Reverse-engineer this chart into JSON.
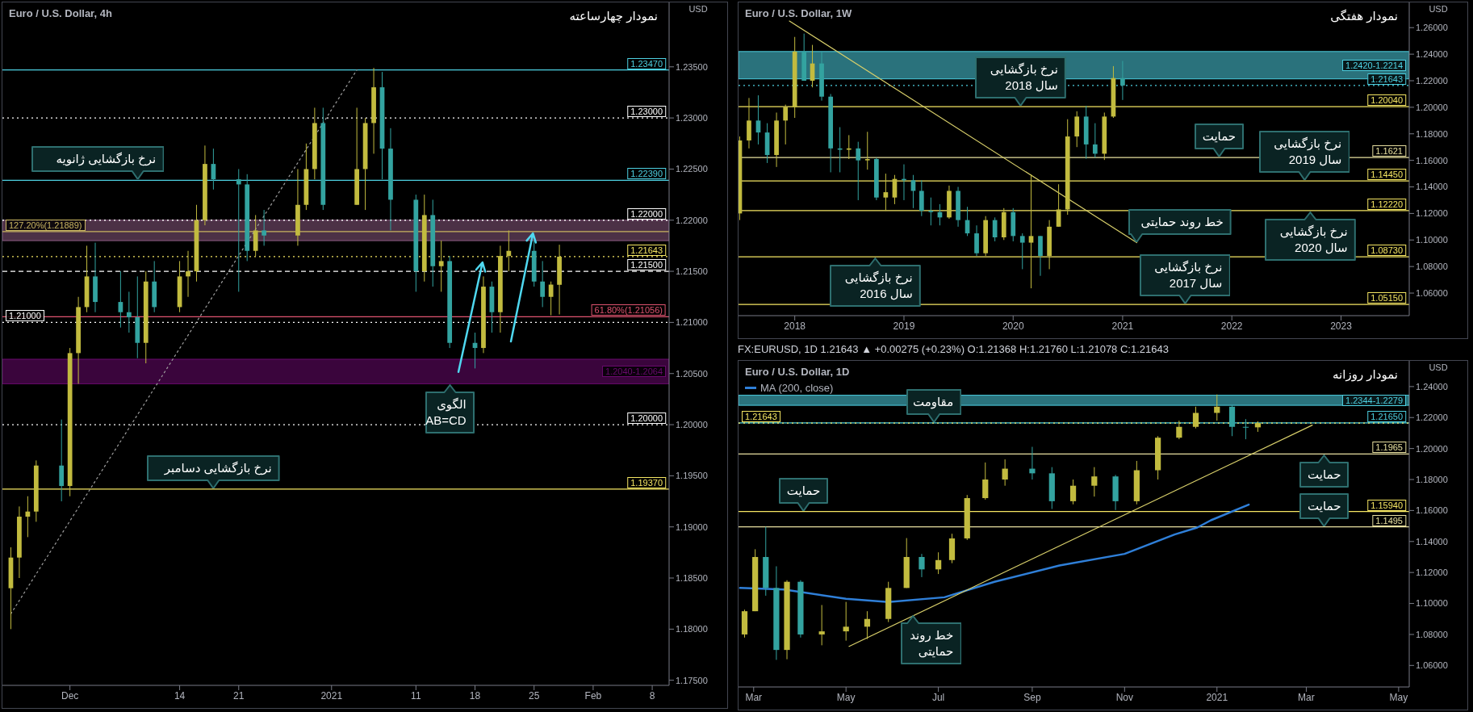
{
  "chart_data": [
    {
      "type": "candlestick",
      "title": "Euro / U.S. Dollar, 4h",
      "ylabel": "USD",
      "x": [
        "2020-11-24",
        "2020-11-25",
        "2020-11-26",
        "2020-11-27",
        "2020-11-30",
        "2020-12-01",
        "2020-12-02",
        "2020-12-03",
        "2020-12-04",
        "2020-12-07",
        "2020-12-08",
        "2020-12-09",
        "2020-12-10",
        "2020-12-11",
        "2020-12-14",
        "2020-12-15",
        "2020-12-16",
        "2020-12-17",
        "2020-12-18",
        "2020-12-21",
        "2020-12-22",
        "2020-12-23",
        "2020-12-24",
        "2020-12-28",
        "2020-12-29",
        "2020-12-30",
        "2020-12-31",
        "2021-01-04",
        "2021-01-05",
        "2021-01-06",
        "2021-01-07",
        "2021-01-08",
        "2021-01-11",
        "2021-01-12",
        "2021-01-13",
        "2021-01-14",
        "2021-01-15",
        "2021-01-18",
        "2021-01-19",
        "2021-01-20",
        "2021-01-21",
        "2021-01-22",
        "2021-01-25",
        "2021-01-26",
        "2021-01-27",
        "2021-01-28"
      ],
      "ohlc": [
        [
          1.184,
          1.188,
          1.18,
          1.187
        ],
        [
          1.187,
          1.192,
          1.185,
          1.191
        ],
        [
          1.191,
          1.193,
          1.189,
          1.1915
        ],
        [
          1.1915,
          1.1965,
          1.1905,
          1.196
        ],
        [
          1.196,
          1.2005,
          1.1925,
          1.194
        ],
        [
          1.194,
          1.2075,
          1.193,
          1.207
        ],
        [
          1.207,
          1.2125,
          1.204,
          1.2115
        ],
        [
          1.2115,
          1.2175,
          1.211,
          1.2145
        ],
        [
          1.2145,
          1.2178,
          1.211,
          1.212
        ],
        [
          1.212,
          1.215,
          1.2095,
          1.211
        ],
        [
          1.211,
          1.213,
          1.209,
          1.2105
        ],
        [
          1.2105,
          1.2145,
          1.2065,
          1.208
        ],
        [
          1.208,
          1.215,
          1.206,
          1.214
        ],
        [
          1.214,
          1.216,
          1.211,
          1.2115
        ],
        [
          1.2115,
          1.216,
          1.211,
          1.2145
        ],
        [
          1.2145,
          1.217,
          1.2125,
          1.215
        ],
        [
          1.215,
          1.2215,
          1.214,
          1.22
        ],
        [
          1.22,
          1.2273,
          1.2195,
          1.2255
        ],
        [
          1.2255,
          1.227,
          1.223,
          1.224
        ],
        [
          1.224,
          1.225,
          1.213,
          1.2235
        ],
        [
          1.2235,
          1.2245,
          1.216,
          1.217
        ],
        [
          1.217,
          1.2205,
          1.2165,
          1.219
        ],
        [
          1.219,
          1.221,
          1.2175,
          1.2185
        ],
        [
          1.2185,
          1.225,
          1.2175,
          1.2215
        ],
        [
          1.2215,
          1.2275,
          1.221,
          1.225
        ],
        [
          1.225,
          1.231,
          1.224,
          1.2295
        ],
        [
          1.2295,
          1.231,
          1.221,
          1.2215
        ],
        [
          1.2215,
          1.231,
          1.2215,
          1.225
        ],
        [
          1.225,
          1.23,
          1.221,
          1.2295
        ],
        [
          1.2295,
          1.2349,
          1.2265,
          1.233
        ],
        [
          1.233,
          1.2345,
          1.224,
          1.227
        ],
        [
          1.227,
          1.229,
          1.219,
          1.222
        ],
        [
          1.222,
          1.2225,
          1.213,
          1.215
        ],
        [
          1.215,
          1.2225,
          1.214,
          1.2205
        ],
        [
          1.2205,
          1.222,
          1.2135,
          1.2155
        ],
        [
          1.2155,
          1.218,
          1.213,
          1.216
        ],
        [
          1.216,
          1.2165,
          1.2075,
          1.208
        ],
        [
          1.208,
          1.209,
          1.2055,
          1.2075
        ],
        [
          1.2075,
          1.2145,
          1.207,
          1.2135
        ],
        [
          1.2135,
          1.214,
          1.209,
          1.211
        ],
        [
          1.211,
          1.2175,
          1.209,
          1.2165
        ],
        [
          1.2165,
          1.219,
          1.215,
          1.217
        ],
        [
          1.217,
          1.218,
          1.2135,
          1.214
        ],
        [
          1.214,
          1.216,
          1.2115,
          1.2125
        ],
        [
          1.2125,
          1.214,
          1.2107,
          1.2137
        ],
        [
          1.21368,
          1.2176,
          1.21078,
          1.21643
        ]
      ],
      "series": [
        {
          "type": "line",
          "color": "#9e9e9e",
          "line_style": "dotted",
          "x": [
            "2020-11-24",
            "2021-01-04"
          ],
          "values": [
            1.1815,
            1.2347
          ]
        }
      ],
      "xlim": [
        "2020-11-23",
        "2021-02-10"
      ],
      "xticks": [
        {
          "value": "2020-12-01",
          "label": "Dec"
        },
        {
          "value": "2020-12-14",
          "label": "14"
        },
        {
          "value": "2020-12-21",
          "label": "21"
        },
        {
          "value": "2021-01-01",
          "label": "2021"
        },
        {
          "value": "2021-01-11",
          "label": "11"
        },
        {
          "value": "2021-01-18",
          "label": "18"
        },
        {
          "value": "2021-01-25",
          "label": "25"
        },
        {
          "value": "2021-02-01",
          "label": "Feb"
        },
        {
          "value": "2021-02-08",
          "label": "8"
        }
      ],
      "ylim": [
        1.1745,
        1.2413
      ],
      "yticks": [
        {
          "value": 1.175,
          "label": "1.17500"
        },
        {
          "value": 1.18,
          "label": "1.18000"
        },
        {
          "value": 1.185,
          "label": "1.18500"
        },
        {
          "value": 1.19,
          "label": "1.19000"
        },
        {
          "value": 1.195,
          "label": "1.19500"
        },
        {
          "value": 1.2,
          "label": "1.20000"
        },
        {
          "value": 1.205,
          "label": "1.20500"
        },
        {
          "value": 1.21,
          "label": "1.21000"
        },
        {
          "value": 1.215,
          "label": "1.21500"
        },
        {
          "value": 1.22,
          "label": "1.22000"
        },
        {
          "value": 1.225,
          "label": "1.22500"
        },
        {
          "value": 1.23,
          "label": "1.23000"
        },
        {
          "value": 1.235,
          "label": "1.23500"
        }
      ],
      "ref_lines": [
        {
          "axis": "y",
          "value": 1.2347,
          "label": "1.23470",
          "color": "#4dd0e1",
          "line_style": "solid"
        },
        {
          "axis": "y",
          "value": 1.23,
          "label": "1.23000",
          "color": "#ffffff",
          "line_style": "dotted"
        },
        {
          "axis": "y",
          "value": 1.2239,
          "label": "1.22390",
          "color": "#4dd0e1",
          "line_style": "solid"
        },
        {
          "axis": "y",
          "value": 1.22,
          "label": "1.22000",
          "color": "#ffffff",
          "line_style": "dotted"
        },
        {
          "axis": "y",
          "value": 1.21889,
          "label": "127.20%(1.21889)",
          "color": "#c8b560",
          "line_style": "solid"
        },
        {
          "axis": "y",
          "value": 1.21643,
          "label": "1.21643",
          "color": "#f5e663",
          "line_style": "dotted"
        },
        {
          "axis": "y",
          "value": 1.215,
          "label": "1.21500",
          "color": "#ffffff",
          "line_style": "dashed"
        },
        {
          "axis": "y",
          "value": 1.21056,
          "label": "61.80%(1.21056)",
          "color": "#e05470",
          "line_style": "solid"
        },
        {
          "axis": "y",
          "value": 1.21,
          "label": "1.21000",
          "color": "#ffffff",
          "line_style": "dotted"
        },
        {
          "axis": "y",
          "value": 1.2,
          "label": "1.20000",
          "color": "#ffffff",
          "line_style": "dotted"
        },
        {
          "axis": "y",
          "value": 1.1937,
          "label": "1.19370",
          "color": "#f5e663",
          "line_style": "solid"
        }
      ],
      "bands": [
        {
          "axis": "y",
          "from": 1.204,
          "to": 1.2064,
          "label": "1.2040-1.2064",
          "color": "#6a0a6e"
        },
        {
          "axis": "y",
          "from": 1.218,
          "to": 1.22,
          "color": "#8a5a80"
        }
      ],
      "annotations": [
        "نمودار چهارساعته",
        {
          "text": "نرخ بازگشایی ژانویه",
          "x": "2020-12-09",
          "y": 1.2239
        },
        {
          "text": "نرخ بازگشایی دسامبر",
          "x": "2020-12-18",
          "y": 1.1937
        },
        {
          "text": "الگوی\nAB=CD",
          "x": "2021-01-15",
          "y": 1.204
        }
      ]
    },
    {
      "type": "candlestick",
      "title": "Euro / U.S. Dollar, 1W",
      "ylabel": "USD",
      "x": [
        "2017-07-01",
        "2017-08-01",
        "2017-09-01",
        "2017-10-01",
        "2017-11-01",
        "2017-12-01",
        "2018-01-01",
        "2018-02-01",
        "2018-03-01",
        "2018-04-01",
        "2018-05-01",
        "2018-06-01",
        "2018-07-01",
        "2018-08-01",
        "2018-09-01",
        "2018-10-01",
        "2018-11-01",
        "2018-12-01",
        "2019-01-01",
        "2019-02-01",
        "2019-03-01",
        "2019-04-01",
        "2019-05-01",
        "2019-06-01",
        "2019-07-01",
        "2019-08-01",
        "2019-09-01",
        "2019-10-01",
        "2019-11-01",
        "2019-12-01",
        "2020-01-01",
        "2020-02-01",
        "2020-03-01",
        "2020-04-01",
        "2020-05-01",
        "2020-06-01",
        "2020-07-01",
        "2020-08-01",
        "2020-09-01",
        "2020-10-01",
        "2020-11-01",
        "2020-12-01",
        "2021-01-01"
      ],
      "ohlc": [
        [
          1.12,
          1.178,
          1.115,
          1.175
        ],
        [
          1.175,
          1.207,
          1.169,
          1.19
        ],
        [
          1.19,
          1.209,
          1.172,
          1.181
        ],
        [
          1.181,
          1.188,
          1.158,
          1.164
        ],
        [
          1.164,
          1.196,
          1.155,
          1.19
        ],
        [
          1.19,
          1.202,
          1.172,
          1.2
        ],
        [
          1.2,
          1.253,
          1.192,
          1.242
        ],
        [
          1.242,
          1.2555,
          1.22,
          1.22
        ],
        [
          1.22,
          1.247,
          1.215,
          1.233
        ],
        [
          1.233,
          1.242,
          1.205,
          1.208
        ],
        [
          1.208,
          1.21,
          1.151,
          1.169
        ],
        [
          1.169,
          1.185,
          1.151,
          1.168
        ],
        [
          1.168,
          1.179,
          1.161,
          1.169
        ],
        [
          1.169,
          1.174,
          1.13,
          1.16
        ],
        [
          1.16,
          1.1815,
          1.153,
          1.161
        ],
        [
          1.161,
          1.162,
          1.13,
          1.132
        ],
        [
          1.132,
          1.15,
          1.122,
          1.136
        ],
        [
          1.132,
          1.149,
          1.127,
          1.146
        ],
        [
          1.146,
          1.157,
          1.13,
          1.145
        ],
        [
          1.145,
          1.149,
          1.124,
          1.137
        ],
        [
          1.137,
          1.145,
          1.118,
          1.122
        ],
        [
          1.122,
          1.132,
          1.111,
          1.121
        ],
        [
          1.121,
          1.127,
          1.111,
          1.117
        ],
        [
          1.117,
          1.141,
          1.116,
          1.137
        ],
        [
          1.137,
          1.14,
          1.11,
          1.115
        ],
        [
          1.115,
          1.125,
          1.103,
          1.105
        ],
        [
          1.105,
          1.111,
          1.088,
          1.09
        ],
        [
          1.09,
          1.118,
          1.088,
          1.115
        ],
        [
          1.115,
          1.117,
          1.099,
          1.102
        ],
        [
          1.102,
          1.124,
          1.1,
          1.121
        ],
        [
          1.121,
          1.124,
          1.099,
          1.103
        ],
        [
          1.103,
          1.105,
          1.078,
          1.098
        ],
        [
          1.098,
          1.1495,
          1.0636,
          1.103
        ],
        [
          1.103,
          1.103,
          1.073,
          1.088
        ],
        [
          1.088,
          1.115,
          1.078,
          1.11
        ],
        [
          1.11,
          1.142,
          1.11,
          1.123
        ],
        [
          1.123,
          1.191,
          1.119,
          1.178
        ],
        [
          1.178,
          1.197,
          1.17,
          1.193
        ],
        [
          1.193,
          1.2011,
          1.1612,
          1.172
        ],
        [
          1.172,
          1.188,
          1.162,
          1.165
        ],
        [
          1.165,
          1.196,
          1.1603,
          1.193
        ],
        [
          1.193,
          1.231,
          1.192,
          1.222
        ],
        [
          1.222,
          1.2349,
          1.2055,
          1.2164
        ]
      ],
      "series": [
        {
          "type": "line",
          "color": "#d8cf6a",
          "line_style": "solid",
          "x": [
            "2017-12-14",
            "2021-02-17"
          ],
          "values": [
            1.265,
            1.098
          ]
        }
      ],
      "xlim": [
        "2017-06-27",
        "2023-08-17"
      ],
      "xticks": [
        {
          "value": "2018-01-01",
          "label": "2018"
        },
        {
          "value": "2019-01-01",
          "label": "2019"
        },
        {
          "value": "2020-01-01",
          "label": "2020"
        },
        {
          "value": "2021-01-01",
          "label": "2021"
        },
        {
          "value": "2022-01-01",
          "label": "2022"
        },
        {
          "value": "2023-01-01",
          "label": "2023"
        }
      ],
      "ylim": [
        1.043,
        1.279
      ],
      "yticks": [
        {
          "value": 1.06,
          "label": "1.06000"
        },
        {
          "value": 1.08,
          "label": "1.08000"
        },
        {
          "value": 1.1,
          "label": "1.10000"
        },
        {
          "value": 1.12,
          "label": "1.12000"
        },
        {
          "value": 1.14,
          "label": "1.14000"
        },
        {
          "value": 1.16,
          "label": "1.16000"
        },
        {
          "value": 1.18,
          "label": "1.18000"
        },
        {
          "value": 1.2,
          "label": "1.20000"
        },
        {
          "value": 1.22,
          "label": "1.22000"
        },
        {
          "value": 1.24,
          "label": "1.24000"
        },
        {
          "value": 1.26,
          "label": "1.26000"
        }
      ],
      "ref_lines": [
        {
          "axis": "y",
          "value": 1.21643,
          "label": "1.21643",
          "color": "#4dd0e1",
          "line_style": "dotted"
        },
        {
          "axis": "y",
          "value": 1.2004,
          "label": "1.20040",
          "color": "#f5e663",
          "line_style": "solid"
        },
        {
          "axis": "y",
          "value": 1.1621,
          "label": "1.1621",
          "color": "#e8e0a0",
          "line_style": "solid"
        },
        {
          "axis": "y",
          "value": 1.1445,
          "label": "1.14450",
          "color": "#f5e663",
          "line_style": "solid"
        },
        {
          "axis": "y",
          "value": 1.1222,
          "label": "1.12220",
          "color": "#f5e663",
          "line_style": "solid"
        },
        {
          "axis": "y",
          "value": 1.0873,
          "label": "1.08730",
          "color": "#f5e663",
          "line_style": "solid"
        },
        {
          "axis": "y",
          "value": 1.0515,
          "label": "1.05150",
          "color": "#f5e663",
          "line_style": "solid"
        }
      ],
      "bands": [
        {
          "axis": "y",
          "from": 1.2214,
          "to": 1.242,
          "label": "1.2420-1.2214",
          "color": "#4dd0e1"
        }
      ],
      "annotations": [
        "نمودار هفتگی",
        {
          "text": "نرخ بازگشایی\nسال 2018",
          "x": "2020-01-26",
          "y": 1.2004
        },
        {
          "text": "حمایت",
          "x": "2021-11-20",
          "y": 1.1621
        },
        {
          "text": "نرخ بازگشایی\nسال 2019",
          "x": "2022-08-31",
          "y": 1.1445
        },
        {
          "text": "نرخ بازگشایی\nسال 2020",
          "x": "2022-09-20",
          "y": 1.1222
        },
        {
          "text": "نرخ بازگشایی\nسال 2016",
          "x": "2018-09-27",
          "y": 1.0873
        },
        {
          "text": "نرخ بازگشایی\nسال 2017",
          "x": "2021-07-28",
          "y": 1.0515
        },
        {
          "text": "خط روند حمایتی",
          "x": "2021-02-17",
          "y": 1.098
        }
      ]
    },
    {
      "type": "candlestick",
      "title": "Euro / U.S. Dollar, 1D",
      "subtitle": "FX:EURUSD, 1D 1.21643 ▲ +0.00275 (+0.23%) O:1.21368 H:1.21760 L:1.21078 C:1.21643",
      "ylabel": "USD",
      "legend": "top left",
      "x": [
        "2020-02-24",
        "2020-03-02",
        "2020-03-09",
        "2020-03-16",
        "2020-03-23",
        "2020-04-01",
        "2020-04-15",
        "2020-05-01",
        "2020-05-15",
        "2020-05-29",
        "2020-06-10",
        "2020-06-20",
        "2020-07-01",
        "2020-07-10",
        "2020-07-20",
        "2020-08-01",
        "2020-08-14",
        "2020-09-01",
        "2020-09-14",
        "2020-09-28",
        "2020-10-12",
        "2020-10-26",
        "2020-11-09",
        "2020-11-23",
        "2020-12-07",
        "2020-12-18",
        "2021-01-01",
        "2021-01-11",
        "2021-01-20",
        "2021-01-28"
      ],
      "ohlc": [
        [
          1.08,
          1.096,
          1.078,
          1.095
        ],
        [
          1.095,
          1.135,
          1.095,
          1.13
        ],
        [
          1.13,
          1.1495,
          1.105,
          1.11
        ],
        [
          1.11,
          1.124,
          1.0636,
          1.07
        ],
        [
          1.07,
          1.115,
          1.064,
          1.114
        ],
        [
          1.114,
          1.115,
          1.078,
          1.08
        ],
        [
          1.08,
          1.099,
          1.073,
          1.082
        ],
        [
          1.082,
          1.101,
          1.076,
          1.085
        ],
        [
          1.085,
          1.095,
          1.077,
          1.09
        ],
        [
          1.09,
          1.114,
          1.088,
          1.11
        ],
        [
          1.11,
          1.1422,
          1.11,
          1.13
        ],
        [
          1.13,
          1.132,
          1.117,
          1.122
        ],
        [
          1.122,
          1.133,
          1.119,
          1.128
        ],
        [
          1.128,
          1.145,
          1.126,
          1.142
        ],
        [
          1.142,
          1.17,
          1.141,
          1.168
        ],
        [
          1.168,
          1.191,
          1.167,
          1.18
        ],
        [
          1.18,
          1.193,
          1.176,
          1.187
        ],
        [
          1.187,
          1.2011,
          1.18,
          1.184
        ],
        [
          1.184,
          1.188,
          1.161,
          1.166
        ],
        [
          1.166,
          1.18,
          1.164,
          1.176
        ],
        [
          1.176,
          1.188,
          1.169,
          1.182
        ],
        [
          1.182,
          1.183,
          1.1603,
          1.166
        ],
        [
          1.166,
          1.192,
          1.164,
          1.186
        ],
        [
          1.186,
          1.208,
          1.18,
          1.207
        ],
        [
          1.207,
          1.218,
          1.206,
          1.214
        ],
        [
          1.214,
          1.227,
          1.213,
          1.223
        ],
        [
          1.223,
          1.2349,
          1.218,
          1.227
        ],
        [
          1.227,
          1.228,
          1.208,
          1.214
        ],
        [
          1.214,
          1.219,
          1.206,
          1.2137
        ],
        [
          1.21368,
          1.2176,
          1.21078,
          1.21643
        ]
      ],
      "series": [
        {
          "type": "line",
          "name": "MA (200, close)",
          "color": "#2f7fd8",
          "line_style": "solid",
          "x": [
            "2020-02-21",
            "2020-03-21",
            "2020-05-01",
            "2020-05-29",
            "2020-07-05",
            "2020-08-07",
            "2020-09-19",
            "2020-11-01",
            "2020-12-04",
            "2020-12-19",
            "2020-12-28",
            "2021-01-22"
          ],
          "values": [
            1.11,
            1.109,
            1.103,
            1.101,
            1.104,
            1.114,
            1.1245,
            1.132,
            1.1445,
            1.149,
            1.1537,
            1.1638
          ]
        },
        {
          "type": "line",
          "color": "#d8cf6a",
          "line_style": "solid",
          "x": [
            "2020-05-03",
            "2021-03-05"
          ],
          "values": [
            1.0723,
            1.2151
          ]
        }
      ],
      "xlim": [
        "2020-02-20",
        "2021-05-08"
      ],
      "xticks": [
        {
          "value": "2020-03-01",
          "label": "Mar"
        },
        {
          "value": "2020-05-01",
          "label": "May"
        },
        {
          "value": "2020-07-01",
          "label": "Jul"
        },
        {
          "value": "2020-09-01",
          "label": "Sep"
        },
        {
          "value": "2020-11-01",
          "label": "Nov"
        },
        {
          "value": "2021-01-01",
          "label": "2021"
        },
        {
          "value": "2021-03-01",
          "label": "Mar"
        },
        {
          "value": "2021-05-01",
          "label": "May"
        }
      ],
      "ylim": [
        1.0461,
        1.2566
      ],
      "yticks": [
        {
          "value": 1.06,
          "label": "1.06000"
        },
        {
          "value": 1.08,
          "label": "1.08000"
        },
        {
          "value": 1.1,
          "label": "1.10000"
        },
        {
          "value": 1.12,
          "label": "1.12000"
        },
        {
          "value": 1.14,
          "label": "1.14000"
        },
        {
          "value": 1.16,
          "label": "1.16000"
        },
        {
          "value": 1.18,
          "label": "1.18000"
        },
        {
          "value": 1.2,
          "label": "1.20000"
        },
        {
          "value": 1.22,
          "label": "1.22000"
        },
        {
          "value": 1.24,
          "label": "1.24000"
        }
      ],
      "ref_lines": [
        {
          "axis": "y",
          "value": 1.2165,
          "label": "1.21650",
          "color": "#4dd0e1",
          "line_style": "solid"
        },
        {
          "axis": "y",
          "value": 1.21643,
          "label": "1.21643",
          "color": "#f5e663",
          "line_style": "dotted"
        },
        {
          "axis": "y",
          "value": 1.1965,
          "label": "1.1965",
          "color": "#e8e0a0",
          "line_style": "solid"
        },
        {
          "axis": "y",
          "value": 1.1594,
          "label": "1.15940",
          "color": "#f5e663",
          "line_style": "solid"
        },
        {
          "axis": "y",
          "value": 1.1495,
          "label": "1.1495",
          "color": "#e8e0a0",
          "line_style": "solid"
        }
      ],
      "bands": [
        {
          "axis": "y",
          "from": 1.2279,
          "to": 1.2344,
          "label": "1.2344-1.2279",
          "color": "#4dd0e1"
        }
      ],
      "annotations": [
        "نمودار روزانه",
        {
          "text": "مقاومت",
          "x": "2020-06-28",
          "y": 1.2165
        },
        {
          "text": "حمایت",
          "x": "2021-03-13",
          "y": 1.1965
        },
        {
          "text": "حمایت",
          "x": "2020-04-03",
          "y": 1.1594
        },
        {
          "text": "حمایت",
          "x": "2021-03-13",
          "y": 1.1495
        },
        {
          "text": "خط روند\nحمایتی",
          "x": "2020-06-14",
          "y": 1.093
        }
      ]
    }
  ]
}
